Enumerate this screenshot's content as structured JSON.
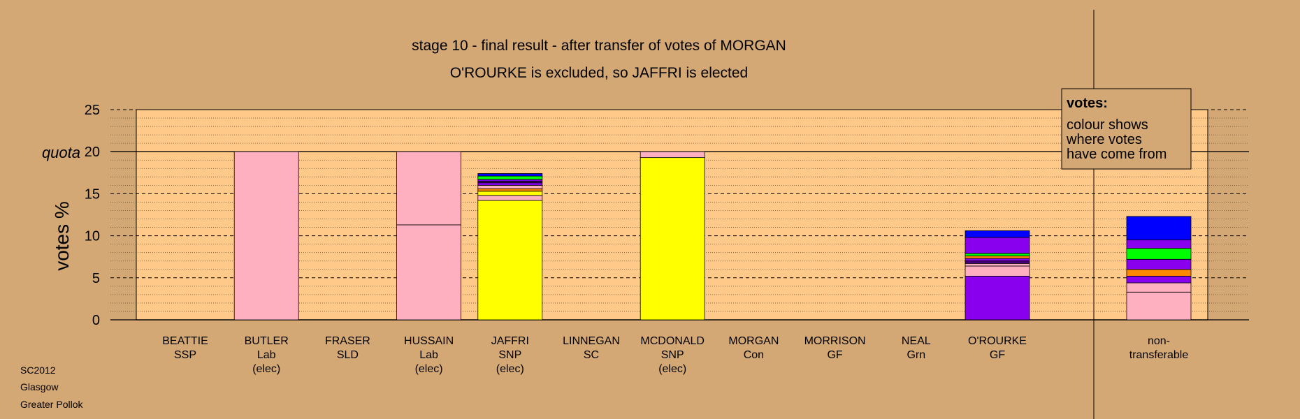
{
  "chart_data": {
    "type": "bar",
    "title": "stage 10 - final result - after transfer of votes of MORGAN",
    "subtitle": "O'ROURKE is excluded, so JAFFRI is elected",
    "ylabel": "votes %",
    "ylim": [
      0,
      25
    ],
    "yticks": [
      0,
      5,
      10,
      15,
      20,
      25
    ],
    "quota": 20,
    "quota_label": "quota",
    "grid": true,
    "legend": {
      "title": "votes:",
      "lines": [
        "colour shows",
        "where votes",
        "have come from"
      ],
      "placement": "top-right"
    },
    "colors": {
      "Lab": "#ffb0c0",
      "SNP": "#ffff00",
      "GF": "#8800ee",
      "Grn": "#00ff00",
      "Con": "#0000ff",
      "SLD": "#ff8800",
      "SSP": "#ff0000",
      "SC": "#4b0082"
    },
    "candidates": [
      {
        "name": "BEATTIE",
        "party": "SSP",
        "note": "",
        "segments": []
      },
      {
        "name": "BUTLER",
        "party": "Lab",
        "note": "(elec)",
        "segments": [
          {
            "from": "Lab",
            "value": 20.0
          }
        ]
      },
      {
        "name": "FRASER",
        "party": "SLD",
        "note": "",
        "segments": []
      },
      {
        "name": "HUSSAIN",
        "party": "Lab",
        "note": "(elec)",
        "segments": [
          {
            "from": "Lab",
            "value": 11.3
          },
          {
            "from": "Lab",
            "value": 8.7
          }
        ]
      },
      {
        "name": "JAFFRI",
        "party": "SNP",
        "note": "(elec)",
        "segments": [
          {
            "from": "SNP",
            "value": 14.2
          },
          {
            "from": "Lab",
            "value": 0.6
          },
          {
            "from": "SNP",
            "value": 0.5
          },
          {
            "from": "SLD",
            "value": 0.3
          },
          {
            "from": "Lab",
            "value": 0.4
          },
          {
            "from": "GF",
            "value": 0.3
          },
          {
            "from": "SC",
            "value": 0.2
          },
          {
            "from": "GF",
            "value": 0.2
          },
          {
            "from": "Grn",
            "value": 0.4
          },
          {
            "from": "Con",
            "value": 0.3
          }
        ]
      },
      {
        "name": "LINNEGAN",
        "party": "SC",
        "note": "",
        "segments": []
      },
      {
        "name": "MCDONALD",
        "party": "SNP",
        "note": "(elec)",
        "segments": [
          {
            "from": "SNP",
            "value": 19.3
          },
          {
            "from": "Lab",
            "value": 0.7
          }
        ]
      },
      {
        "name": "MORGAN",
        "party": "Con",
        "note": "",
        "segments": []
      },
      {
        "name": "MORRISON",
        "party": "GF",
        "note": "",
        "segments": []
      },
      {
        "name": "NEAL",
        "party": "Grn",
        "note": "",
        "segments": []
      },
      {
        "name": "O'ROURKE",
        "party": "GF",
        "note": "",
        "segments": [
          {
            "from": "GF",
            "value": 5.2
          },
          {
            "from": "Lab",
            "value": 1.2
          },
          {
            "from": "Lab",
            "value": 0.3
          },
          {
            "from": "SC",
            "value": 0.3
          },
          {
            "from": "GF",
            "value": 0.3
          },
          {
            "from": "SLD",
            "value": 0.3
          },
          {
            "from": "Grn",
            "value": 0.3
          },
          {
            "from": "GF",
            "value": 1.9
          },
          {
            "from": "Con",
            "value": 0.8
          }
        ]
      }
    ],
    "nontransferable": {
      "label_lines": [
        "non-",
        "transferable"
      ],
      "segments": [
        {
          "from": "Lab",
          "value": 3.3
        },
        {
          "from": "Lab",
          "value": 1.1
        },
        {
          "from": "GF",
          "value": 0.8
        },
        {
          "from": "SLD",
          "value": 0.8
        },
        {
          "from": "GF",
          "value": 1.2
        },
        {
          "from": "Grn",
          "value": 1.3
        },
        {
          "from": "GF",
          "value": 1.0
        },
        {
          "from": "Con",
          "value": 2.8
        }
      ]
    }
  },
  "footer": [
    "SC2012",
    "Glasgow",
    "Greater Pollok"
  ]
}
